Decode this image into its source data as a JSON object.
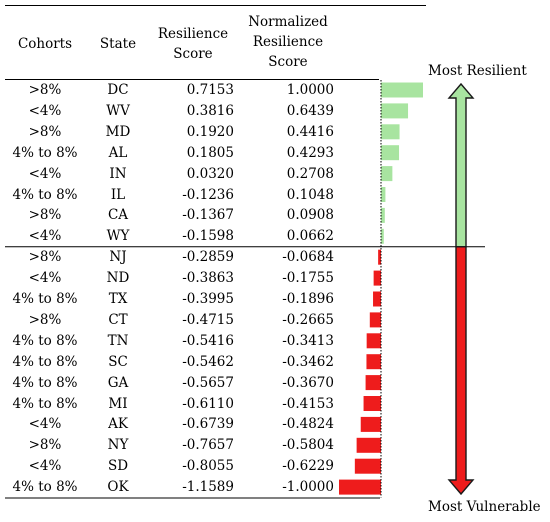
{
  "table": {
    "headers": {
      "cohorts": "Cohorts",
      "state": "State",
      "resilience_line1": "Resilience",
      "resilience_line2": "Score",
      "normalized_line1": "Normalized",
      "normalized_line2": "Resilience",
      "normalized_line3": "Score"
    }
  },
  "labels": {
    "top": "Most Resilient",
    "bottom": "Most Vulnerable"
  },
  "colors": {
    "positive": "#a8e4a0",
    "negative": "#ee1c1c",
    "arrow_up": "#a8e4a0",
    "arrow_down": "#ee1c1c"
  },
  "chart_data": {
    "type": "table",
    "columns": [
      "Cohorts",
      "State",
      "Resilience Score",
      "Normalized Resilience Score"
    ],
    "rows": [
      {
        "cohort": ">8%",
        "state": "DC",
        "score": "0.7153",
        "normalized": "1.0000",
        "value": 1.0
      },
      {
        "cohort": "<4%",
        "state": "WV",
        "score": "0.3816",
        "normalized": "0.6439",
        "value": 0.6439
      },
      {
        "cohort": ">8%",
        "state": "MD",
        "score": "0.1920",
        "normalized": "0.4416",
        "value": 0.4416
      },
      {
        "cohort": "4% to 8%",
        "state": "AL",
        "score": "0.1805",
        "normalized": "0.4293",
        "value": 0.4293
      },
      {
        "cohort": "<4%",
        "state": "IN",
        "score": "0.0320",
        "normalized": "0.2708",
        "value": 0.2708
      },
      {
        "cohort": "4% to 8%",
        "state": "IL",
        "score": "-0.1236",
        "normalized": "0.1048",
        "value": 0.1048
      },
      {
        "cohort": ">8%",
        "state": "CA",
        "score": "-0.1367",
        "normalized": "0.0908",
        "value": 0.0908
      },
      {
        "cohort": "<4%",
        "state": "WY",
        "score": "-0.1598",
        "normalized": "0.0662",
        "value": 0.0662
      },
      {
        "cohort": ">8%",
        "state": "NJ",
        "score": "-0.2859",
        "normalized": "-0.0684",
        "value": -0.0684
      },
      {
        "cohort": "<4%",
        "state": "ND",
        "score": "-0.3863",
        "normalized": "-0.1755",
        "value": -0.1755
      },
      {
        "cohort": "4% to 8%",
        "state": "TX",
        "score": "-0.3995",
        "normalized": "-0.1896",
        "value": -0.1896
      },
      {
        "cohort": ">8%",
        "state": "CT",
        "score": "-0.4715",
        "normalized": "-0.2665",
        "value": -0.2665
      },
      {
        "cohort": "4% to 8%",
        "state": "TN",
        "score": "-0.5416",
        "normalized": "-0.3413",
        "value": -0.3413
      },
      {
        "cohort": "4% to 8%",
        "state": "SC",
        "score": "-0.5462",
        "normalized": "-0.3462",
        "value": -0.3462
      },
      {
        "cohort": "4% to 8%",
        "state": "GA",
        "score": "-0.5657",
        "normalized": "-0.3670",
        "value": -0.367
      },
      {
        "cohort": "4% to 8%",
        "state": "MI",
        "score": "-0.6110",
        "normalized": "-0.4153",
        "value": -0.4153
      },
      {
        "cohort": "<4%",
        "state": "AK",
        "score": "-0.6739",
        "normalized": "-0.4824",
        "value": -0.4824
      },
      {
        "cohort": ">8%",
        "state": "NY",
        "score": "-0.7657",
        "normalized": "-0.5804",
        "value": -0.5804
      },
      {
        "cohort": "<4%",
        "state": "SD",
        "score": "-0.8055",
        "normalized": "-0.6229",
        "value": -0.6229
      },
      {
        "cohort": "4% to 8%",
        "state": "OK",
        "score": "-1.1589",
        "normalized": "-1.0000",
        "value": -1.0
      }
    ],
    "bar_range": [
      -1,
      1
    ]
  }
}
